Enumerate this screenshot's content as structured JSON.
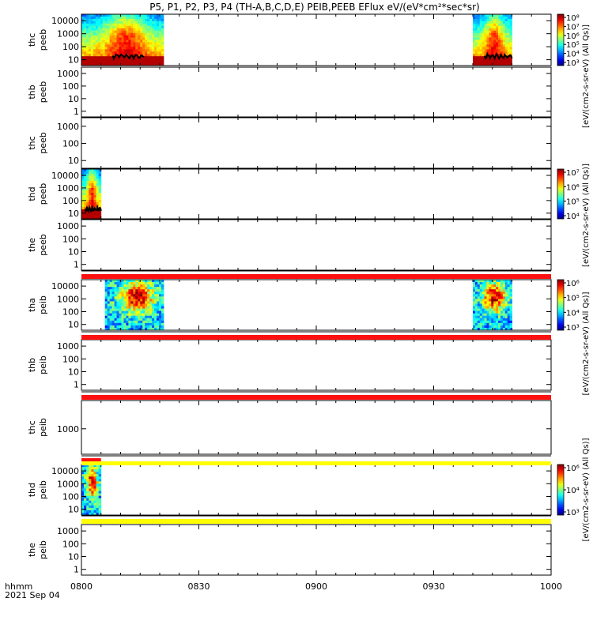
{
  "title": "P5, P1, P2, P3, P4 (TH-A,B,C,D,E) PEIB,PEEB EFlux eV/(eV*cm²*sec*sr)",
  "corner_label": {
    "line1": "hhmm",
    "line2": "2021 Sep 04"
  },
  "chart_data": {
    "type": "heatmap",
    "title": "P5, P1, P2, P3, P4 (TH-A,B,C,D,E) PEIB,PEEB EFlux eV/(eV*cm²*sec*sr)",
    "xlabel": "hhmm",
    "xdate": "2021 Sep 04",
    "x_ticks": [
      "0800",
      "0830",
      "0900",
      "0930",
      "1000"
    ],
    "xlim": [
      "0800",
      "1000"
    ],
    "grid": false,
    "panels": [
      {
        "ylabel": [
          "thc",
          "peeb"
        ],
        "yticks": [
          "10",
          "100",
          "1000",
          "10000"
        ],
        "log": true,
        "has_data": true,
        "data_ranges": [
          [
            "0800",
            "0821"
          ],
          [
            "0940",
            "0950"
          ]
        ]
      },
      {
        "ylabel": [
          "thb",
          "peeb"
        ],
        "yticks": [
          "1",
          "10",
          "100",
          "1000"
        ],
        "log": true,
        "has_data": false
      },
      {
        "ylabel": [
          "thc",
          "peeb"
        ],
        "yticks": [
          "10",
          "100",
          "1000"
        ],
        "log": true,
        "has_data": false
      },
      {
        "ylabel": [
          "thd",
          "peeb"
        ],
        "yticks": [
          "10",
          "100",
          "1000",
          "10000"
        ],
        "log": true,
        "has_data": true,
        "data_ranges": [
          [
            "0800",
            "0805"
          ]
        ]
      },
      {
        "ylabel": [
          "the",
          "peeb"
        ],
        "yticks": [
          "1",
          "10",
          "100",
          "1000"
        ],
        "log": true,
        "has_data": false
      },
      {
        "ylabel": [
          "tha",
          "peib"
        ],
        "yticks": [
          "10",
          "100",
          "1000",
          "10000"
        ],
        "log": true,
        "has_data": true,
        "data_ranges": [
          [
            "0806",
            "0821"
          ],
          [
            "0940",
            "0950"
          ]
        ]
      },
      {
        "ylabel": [
          "thb",
          "peib"
        ],
        "yticks": [
          "1",
          "10",
          "100",
          "1000"
        ],
        "log": true,
        "has_data": false
      },
      {
        "ylabel": [
          "thc",
          "peib"
        ],
        "yticks": [
          "1000"
        ],
        "log": true,
        "has_data": false
      },
      {
        "ylabel": [
          "thd",
          "peib"
        ],
        "yticks": [
          "10",
          "100",
          "1000",
          "10000"
        ],
        "log": true,
        "has_data": true,
        "data_ranges": [
          [
            "0800",
            "0805"
          ]
        ]
      },
      {
        "ylabel": [
          "the",
          "peib"
        ],
        "yticks": [
          "1",
          "10",
          "100",
          "1000"
        ],
        "log": true,
        "has_data": false
      }
    ],
    "colorbars": [
      {
        "label": "[eV/(cm2-s-sr-eV) (All Qs)]",
        "ticks": [
          "10³",
          "10⁴",
          "10⁵",
          "10⁶",
          "10⁷",
          "10⁸"
        ]
      },
      {
        "label": "[eV/(cm2-s-sr-eV) (All Qs)]",
        "ticks": [
          "10⁴",
          "10⁵",
          "10⁶",
          "10⁷"
        ]
      },
      {
        "label": "[eV/(cm2-s-sr-eV) (All Qs)]",
        "ticks": [
          "10³",
          "10⁴",
          "10⁵",
          "10⁶"
        ]
      },
      {
        "label": "[eV/(cm2-s-sr-eV) (All Qs)]",
        "ticks": [
          "10³",
          "10⁴",
          "10⁶"
        ]
      }
    ],
    "status_bars": [
      "red",
      "red",
      "red",
      "red/yellow",
      "yellow"
    ]
  }
}
